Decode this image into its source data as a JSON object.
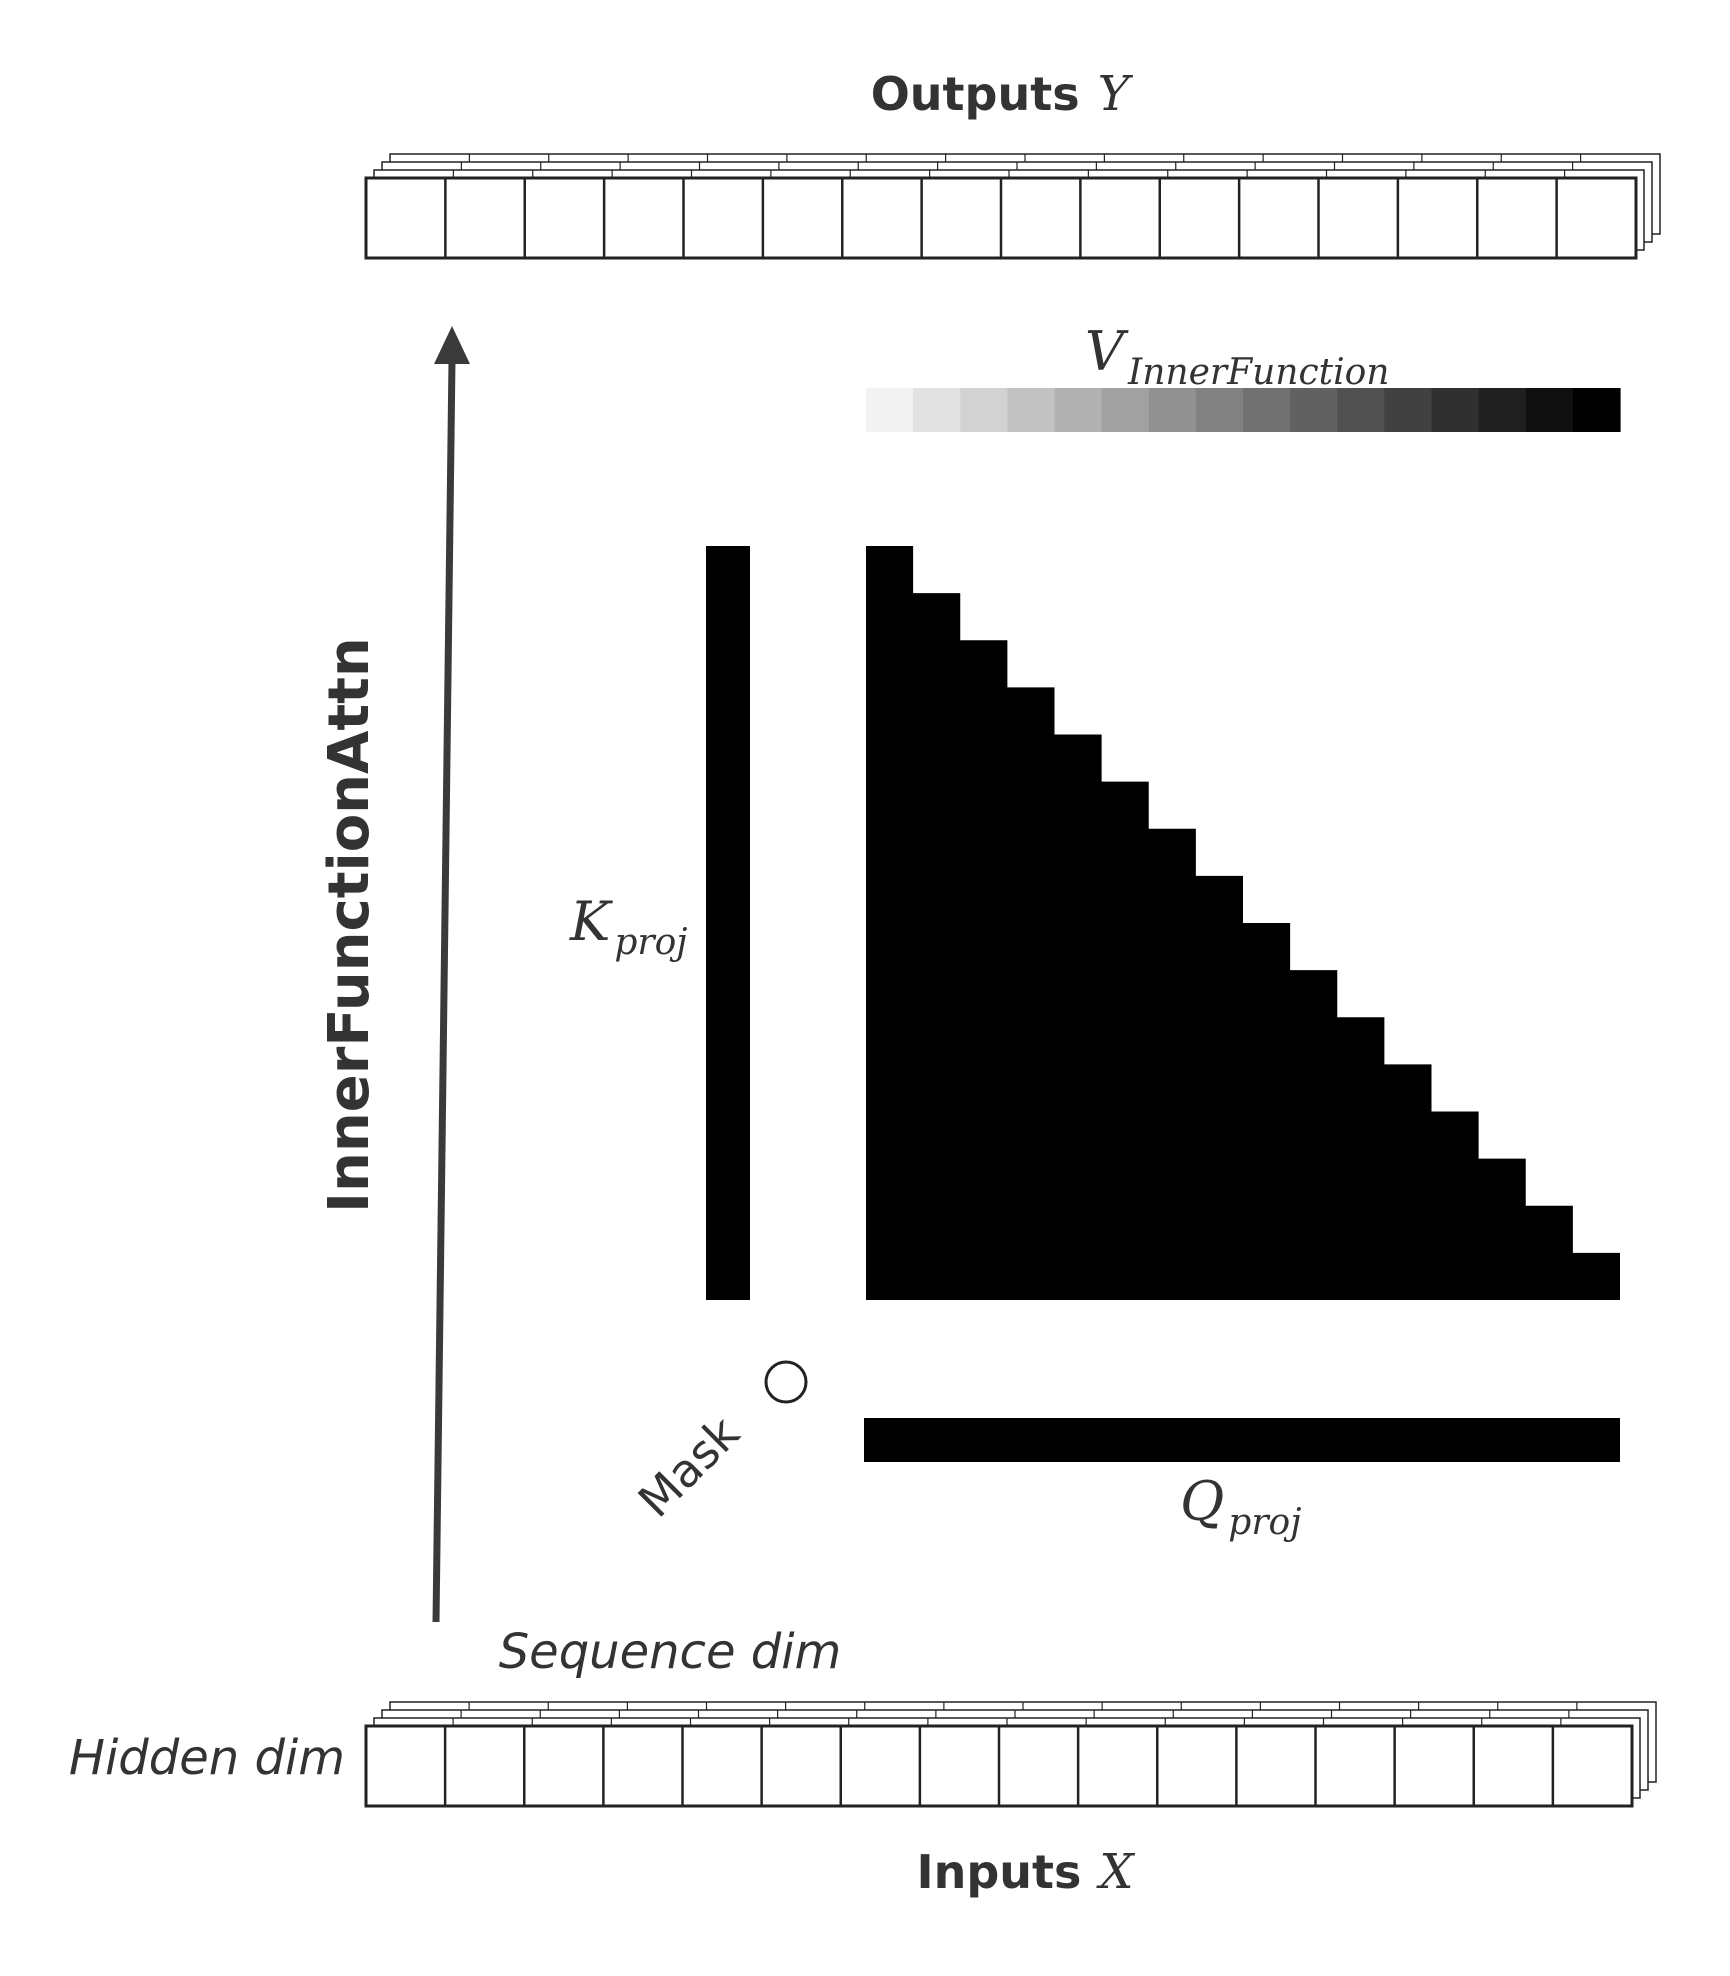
{
  "outputs": {
    "label": "Outputs",
    "symbol": "Y"
  },
  "inputs": {
    "label": "Inputs",
    "symbol": "X"
  },
  "side_label": "InnerFunctionAttn",
  "v_label": {
    "base": "V",
    "sub": "InnerFunction"
  },
  "k_label": {
    "base": "K",
    "sub": "proj"
  },
  "q_label": {
    "base": "Q",
    "sub": "proj"
  },
  "mask_label": "Mask",
  "mask_operator": "○",
  "sequence_label": "Sequence dim",
  "hidden_label": "Hidden dim",
  "structure": {
    "token_cells": 16,
    "v_gradient_steps": 16,
    "mask_rows": 16,
    "mask_fill": "lower-triangular (causal)",
    "stack_depth": 4
  },
  "colors": {
    "stroke": "#222222",
    "arrow": "#3a3a3a",
    "fill": "#000000",
    "gradient_start": "#f2f2f2",
    "gradient_end": "#000000",
    "text": "#333333"
  }
}
